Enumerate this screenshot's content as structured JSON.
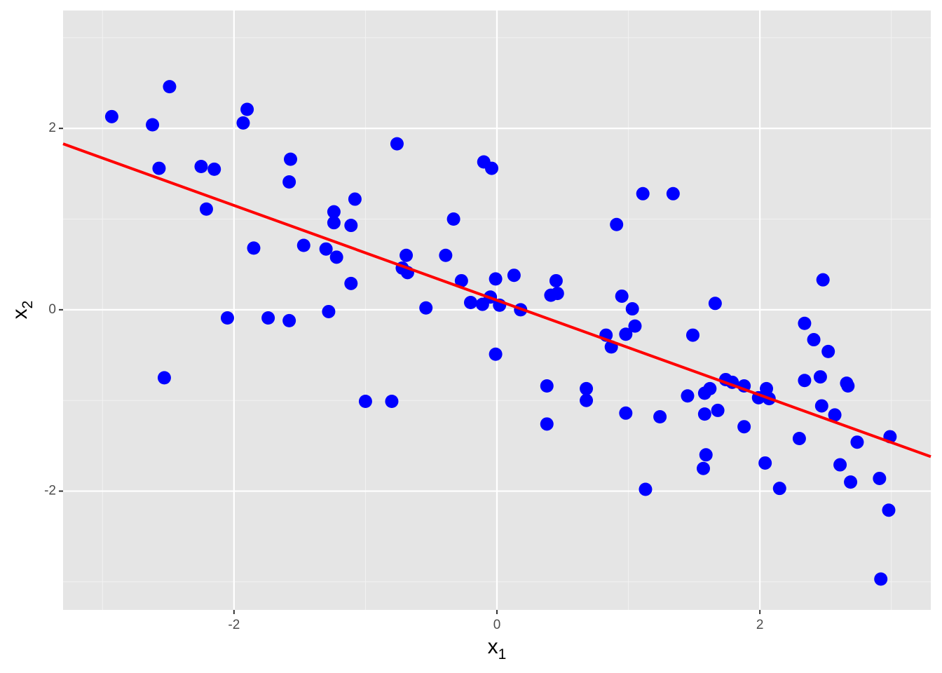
{
  "chart_data": {
    "type": "scatter",
    "xlabel": "x",
    "xlabel_sub": "1",
    "ylabel": "x",
    "ylabel_sub": "2",
    "xlim": [
      -3.3,
      3.3
    ],
    "ylim": [
      -3.31,
      3.3
    ],
    "xticks": [
      -2,
      0,
      2
    ],
    "yticks": [
      -2,
      0,
      2
    ],
    "minor_xticks": [
      -3,
      -1,
      1,
      3
    ],
    "minor_yticks": [
      -3,
      -1,
      1,
      3
    ],
    "grid": true,
    "series": [
      {
        "color": "#0000ff",
        "x": [
          -2.93,
          -2.62,
          -2.49,
          -2.57,
          -2.53,
          -2.25,
          -2.15,
          -2.21,
          -2.05,
          -1.93,
          -1.9,
          -1.85,
          -1.74,
          -1.57,
          -1.58,
          -1.58,
          -1.47,
          -1.3,
          -1.28,
          -1.24,
          -1.24,
          -1.22,
          -1.11,
          -1.08,
          -1.11,
          -1.0,
          -0.8,
          -0.76,
          -0.69,
          -0.72,
          -0.68,
          -0.54,
          -0.39,
          -0.33,
          -0.27,
          -0.2,
          -0.11,
          -0.1,
          -0.04,
          -0.05,
          -0.01,
          0.02,
          -0.01,
          0.13,
          0.18,
          0.38,
          0.38,
          0.41,
          0.45,
          0.46,
          0.68,
          0.68,
          0.83,
          0.87,
          0.91,
          0.95,
          0.98,
          0.98,
          1.03,
          1.05,
          1.11,
          1.13,
          1.24,
          1.34,
          1.45,
          1.49,
          1.57,
          1.58,
          1.59,
          1.58,
          1.62,
          1.66,
          1.68,
          1.74,
          1.79,
          1.88,
          1.88,
          1.99,
          2.04,
          2.05,
          2.07,
          2.15,
          2.3,
          2.34,
          2.34,
          2.41,
          2.46,
          2.47,
          2.48,
          2.52,
          2.57,
          2.61,
          2.66,
          2.67,
          2.69,
          2.74,
          2.91,
          2.92,
          2.98,
          2.99
        ],
        "values": [
          2.13,
          2.04,
          2.46,
          1.56,
          -0.75,
          1.58,
          1.55,
          1.11,
          -0.09,
          2.06,
          2.21,
          0.68,
          -0.09,
          1.66,
          1.41,
          -0.12,
          0.71,
          0.67,
          -0.02,
          1.08,
          0.96,
          0.58,
          0.93,
          1.22,
          0.29,
          -1.01,
          -1.01,
          1.83,
          0.6,
          0.46,
          0.41,
          0.02,
          0.6,
          1.0,
          0.32,
          0.08,
          0.06,
          1.63,
          1.56,
          0.14,
          0.34,
          0.05,
          -0.49,
          0.38,
          0.0,
          -0.84,
          -1.26,
          0.16,
          0.32,
          0.18,
          -0.87,
          -1.0,
          -0.28,
          -0.41,
          0.94,
          0.15,
          -0.27,
          -1.14,
          0.01,
          -0.18,
          1.28,
          -1.98,
          -1.18,
          1.28,
          -0.95,
          -0.28,
          -1.75,
          -0.92,
          -1.6,
          -1.15,
          -0.87,
          0.07,
          -1.11,
          -0.77,
          -0.8,
          -0.84,
          -1.29,
          -0.97,
          -1.69,
          -0.87,
          -0.98,
          -1.97,
          -1.42,
          -0.78,
          -0.15,
          -0.33,
          -0.74,
          -1.06,
          0.33,
          -0.46,
          -1.16,
          -1.71,
          -0.81,
          -0.84,
          -1.9,
          -1.46,
          -1.86,
          -2.97,
          -2.21,
          -1.4
        ]
      }
    ],
    "fit_line": {
      "color": "#ff0000",
      "x": [
        -3.3,
        3.3
      ],
      "values": [
        1.83,
        -1.62
      ]
    }
  }
}
